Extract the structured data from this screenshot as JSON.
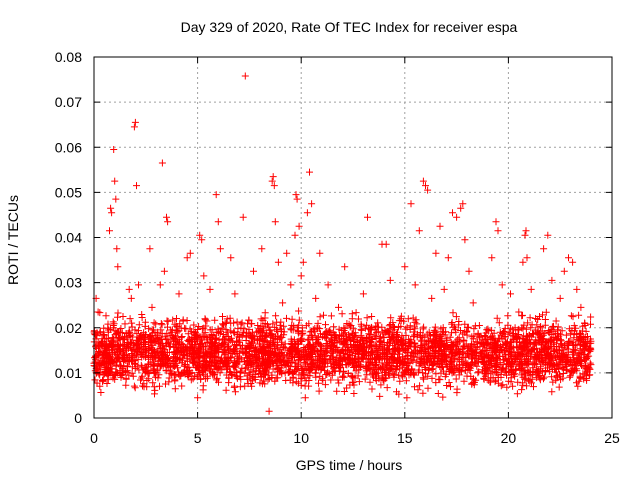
{
  "chart_data": {
    "type": "scatter",
    "title": "Day 329 of 2020, Rate Of TEC Index for receiver espa",
    "xlabel": "GPS time / hours",
    "ylabel": "ROTI / TECUs",
    "xlim": [
      0,
      25
    ],
    "ylim": [
      0,
      0.08
    ],
    "x_ticks": [
      0,
      5,
      10,
      15,
      20,
      25
    ],
    "x_tick_labels": [
      "0",
      "5",
      "10",
      "15",
      "20",
      "25"
    ],
    "y_ticks": [
      0,
      0.01,
      0.02,
      0.03,
      0.04,
      0.05,
      0.06,
      0.07,
      0.08
    ],
    "y_tick_labels": [
      "0",
      "0.01",
      "0.02",
      "0.03",
      "0.04",
      "0.05",
      "0.06",
      "0.07",
      "0.08"
    ],
    "grid": true,
    "marker": "+",
    "marker_color": "#ff0000",
    "series": [
      {
        "name": "ROTI",
        "points": [
          [
            0.05,
            0.0115
          ],
          [
            0.1,
            0.0265
          ],
          [
            0.2,
            0.0235
          ],
          [
            0.3,
            0.0145
          ],
          [
            0.45,
            0.0085
          ],
          [
            0.6,
            0.0125
          ],
          [
            0.7,
            0.0195
          ],
          [
            0.75,
            0.0415
          ],
          [
            0.8,
            0.0465
          ],
          [
            0.85,
            0.0455
          ],
          [
            0.95,
            0.0595
          ],
          [
            1.0,
            0.0525
          ],
          [
            1.05,
            0.0485
          ],
          [
            1.1,
            0.0375
          ],
          [
            1.15,
            0.0335
          ],
          [
            1.25,
            0.0105
          ],
          [
            1.4,
            0.0225
          ],
          [
            1.55,
            0.0155
          ],
          [
            1.7,
            0.0285
          ],
          [
            1.8,
            0.0265
          ],
          [
            1.95,
            0.0645
          ],
          [
            2.0,
            0.0655
          ],
          [
            2.05,
            0.0515
          ],
          [
            2.15,
            0.0295
          ],
          [
            2.3,
            0.0135
          ],
          [
            2.5,
            0.0185
          ],
          [
            2.7,
            0.0375
          ],
          [
            2.8,
            0.0245
          ],
          [
            2.9,
            0.0145
          ],
          [
            3.05,
            0.0105
          ],
          [
            3.2,
            0.0295
          ],
          [
            3.3,
            0.0565
          ],
          [
            3.4,
            0.0325
          ],
          [
            3.5,
            0.0445
          ],
          [
            3.55,
            0.0435
          ],
          [
            3.7,
            0.0195
          ],
          [
            3.9,
            0.0125
          ],
          [
            4.1,
            0.0275
          ],
          [
            4.3,
            0.0215
          ],
          [
            4.5,
            0.0355
          ],
          [
            4.65,
            0.0365
          ],
          [
            4.8,
            0.0135
          ],
          [
            5.0,
            0.0045
          ],
          [
            5.1,
            0.0405
          ],
          [
            5.2,
            0.0395
          ],
          [
            5.3,
            0.0315
          ],
          [
            5.45,
            0.0215
          ],
          [
            5.6,
            0.0285
          ],
          [
            5.8,
            0.0135
          ],
          [
            5.9,
            0.0495
          ],
          [
            6.0,
            0.0435
          ],
          [
            6.1,
            0.0375
          ],
          [
            6.2,
            0.0225
          ],
          [
            6.4,
            0.0115
          ],
          [
            6.6,
            0.0355
          ],
          [
            6.8,
            0.0275
          ],
          [
            7.0,
            0.0185
          ],
          [
            7.2,
            0.0445
          ],
          [
            7.3,
            0.0758
          ],
          [
            7.5,
            0.0155
          ],
          [
            7.7,
            0.0325
          ],
          [
            7.9,
            0.0205
          ],
          [
            8.1,
            0.0375
          ],
          [
            8.3,
            0.0125
          ],
          [
            8.45,
            0.0015
          ],
          [
            8.6,
            0.0525
          ],
          [
            8.65,
            0.0535
          ],
          [
            8.7,
            0.0515
          ],
          [
            8.75,
            0.0435
          ],
          [
            8.9,
            0.0345
          ],
          [
            9.1,
            0.0255
          ],
          [
            9.3,
            0.0365
          ],
          [
            9.5,
            0.0295
          ],
          [
            9.7,
            0.0405
          ],
          [
            9.75,
            0.0495
          ],
          [
            9.8,
            0.0485
          ],
          [
            9.9,
            0.0425
          ],
          [
            10.0,
            0.0315
          ],
          [
            10.1,
            0.0345
          ],
          [
            10.2,
            0.0045
          ],
          [
            10.3,
            0.0455
          ],
          [
            10.4,
            0.0545
          ],
          [
            10.5,
            0.0475
          ],
          [
            10.7,
            0.0265
          ],
          [
            10.9,
            0.0365
          ],
          [
            11.1,
            0.0185
          ],
          [
            11.3,
            0.0295
          ],
          [
            11.5,
            0.0135
          ],
          [
            11.8,
            0.0245
          ],
          [
            12.1,
            0.0335
          ],
          [
            12.4,
            0.0205
          ],
          [
            12.7,
            0.0155
          ],
          [
            13.0,
            0.0275
          ],
          [
            13.2,
            0.0445
          ],
          [
            13.4,
            0.0225
          ],
          [
            13.7,
            0.0135
          ],
          [
            13.9,
            0.0385
          ],
          [
            14.1,
            0.0385
          ],
          [
            14.3,
            0.0305
          ],
          [
            14.6,
            0.0185
          ],
          [
            14.8,
            0.0125
          ],
          [
            15.0,
            0.0335
          ],
          [
            15.1,
            0.0045
          ],
          [
            15.3,
            0.0475
          ],
          [
            15.5,
            0.0295
          ],
          [
            15.7,
            0.0415
          ],
          [
            15.9,
            0.0525
          ],
          [
            16.0,
            0.0515
          ],
          [
            16.1,
            0.0505
          ],
          [
            16.3,
            0.0265
          ],
          [
            16.5,
            0.0365
          ],
          [
            16.7,
            0.0425
          ],
          [
            16.9,
            0.0285
          ],
          [
            17.1,
            0.0355
          ],
          [
            17.3,
            0.0455
          ],
          [
            17.5,
            0.0445
          ],
          [
            17.7,
            0.0465
          ],
          [
            17.8,
            0.0475
          ],
          [
            17.9,
            0.0395
          ],
          [
            18.1,
            0.0325
          ],
          [
            18.3,
            0.0255
          ],
          [
            18.6,
            0.0205
          ],
          [
            18.9,
            0.0175
          ],
          [
            19.2,
            0.0355
          ],
          [
            19.4,
            0.0435
          ],
          [
            19.5,
            0.0415
          ],
          [
            19.7,
            0.0295
          ],
          [
            19.9,
            0.0165
          ],
          [
            20.1,
            0.0275
          ],
          [
            20.3,
            0.0125
          ],
          [
            20.5,
            0.0235
          ],
          [
            20.7,
            0.0345
          ],
          [
            20.8,
            0.0405
          ],
          [
            20.85,
            0.0415
          ],
          [
            20.9,
            0.0355
          ],
          [
            21.1,
            0.0285
          ],
          [
            21.3,
            0.0195
          ],
          [
            21.5,
            0.0225
          ],
          [
            21.7,
            0.0375
          ],
          [
            21.9,
            0.0405
          ],
          [
            22.1,
            0.0305
          ],
          [
            22.3,
            0.0215
          ],
          [
            22.5,
            0.0265
          ],
          [
            22.7,
            0.0325
          ],
          [
            22.9,
            0.0355
          ],
          [
            23.1,
            0.0345
          ],
          [
            23.3,
            0.0285
          ],
          [
            23.5,
            0.0245
          ],
          [
            23.7,
            0.0205
          ],
          [
            23.9,
            0.0165
          ]
        ],
        "band": {
          "x_range": [
            0,
            24
          ],
          "typical_min": 0.004,
          "typical_max": 0.022,
          "density_per_hour": 150
        }
      }
    ]
  }
}
